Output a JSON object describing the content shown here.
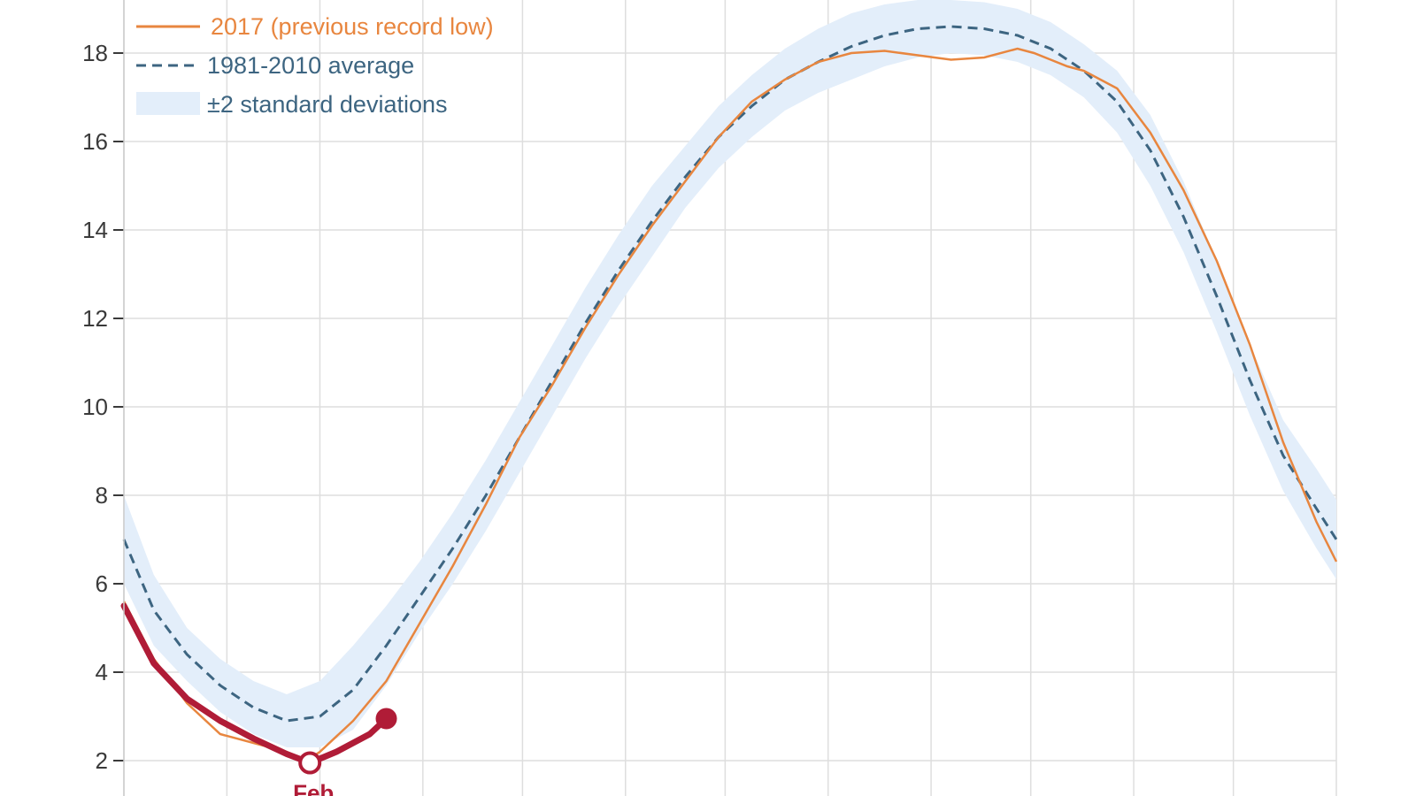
{
  "chart_data": {
    "type": "line",
    "ylim": [
      1.2,
      19.2
    ],
    "xlim": [
      1,
      366
    ],
    "yticks": [
      2,
      4,
      6,
      8,
      10,
      12,
      14,
      16,
      18
    ],
    "ytick_labels": [
      "2",
      "4",
      "6",
      "8",
      "10",
      "12",
      "14",
      "16",
      "18"
    ],
    "x_gridlines": [
      1,
      32,
      60,
      91,
      121,
      152,
      182,
      213,
      244,
      274,
      305,
      335,
      366
    ],
    "grid": true,
    "legend_placement": "top-left",
    "series": [
      {
        "name": "2017 (previous record low)",
        "style": "solid",
        "color": "#e8863f",
        "x": [
          1,
          10,
          20,
          30,
          40,
          50,
          56,
          60,
          70,
          80,
          90,
          100,
          110,
          120,
          130,
          140,
          150,
          160,
          170,
          180,
          190,
          200,
          210,
          220,
          230,
          240,
          250,
          260,
          270,
          275,
          280,
          285,
          290,
          300,
          310,
          320,
          330,
          340,
          350,
          360,
          366
        ],
        "y": [
          5.6,
          4.3,
          3.3,
          2.6,
          2.4,
          2.2,
          2.0,
          2.2,
          2.9,
          3.8,
          5.1,
          6.4,
          7.8,
          9.3,
          10.5,
          11.8,
          13.0,
          14.1,
          15.1,
          16.1,
          16.9,
          17.4,
          17.8,
          18.0,
          18.05,
          17.95,
          17.85,
          17.9,
          18.1,
          18.0,
          17.85,
          17.7,
          17.6,
          17.2,
          16.2,
          14.9,
          13.3,
          11.4,
          9.2,
          7.4,
          6.5
        ]
      },
      {
        "name": "1981-2010 average",
        "style": "dashed",
        "color": "#3d6581",
        "x": [
          1,
          10,
          20,
          30,
          40,
          50,
          60,
          70,
          80,
          90,
          100,
          110,
          120,
          130,
          140,
          150,
          160,
          170,
          180,
          190,
          200,
          210,
          220,
          230,
          240,
          250,
          260,
          270,
          280,
          290,
          300,
          310,
          320,
          330,
          340,
          350,
          360,
          366
        ],
        "y": [
          7.0,
          5.4,
          4.4,
          3.7,
          3.2,
          2.9,
          3.0,
          3.6,
          4.6,
          5.7,
          6.8,
          8.0,
          9.3,
          10.6,
          11.9,
          13.1,
          14.2,
          15.2,
          16.1,
          16.8,
          17.4,
          17.8,
          18.15,
          18.4,
          18.55,
          18.6,
          18.55,
          18.4,
          18.1,
          17.6,
          16.9,
          15.8,
          14.3,
          12.5,
          10.6,
          8.9,
          7.7,
          7.0
        ]
      },
      {
        "name": "±2 standard deviations",
        "style": "band",
        "color": "#e3eefa",
        "x": [
          1,
          10,
          20,
          30,
          40,
          50,
          60,
          70,
          80,
          90,
          100,
          110,
          120,
          130,
          140,
          150,
          160,
          170,
          180,
          190,
          200,
          210,
          220,
          230,
          240,
          250,
          260,
          270,
          280,
          290,
          300,
          310,
          320,
          330,
          340,
          350,
          360,
          366
        ],
        "upper": [
          8.0,
          6.2,
          5.0,
          4.3,
          3.8,
          3.5,
          3.8,
          4.6,
          5.5,
          6.5,
          7.6,
          8.8,
          10.1,
          11.4,
          12.7,
          13.9,
          15.0,
          15.9,
          16.8,
          17.5,
          18.1,
          18.55,
          18.9,
          19.1,
          19.2,
          19.2,
          19.15,
          19.0,
          18.7,
          18.2,
          17.6,
          16.6,
          15.1,
          13.3,
          11.4,
          9.7,
          8.6,
          7.9
        ]
      },
      {
        "name": "",
        "style": "current",
        "color": "#b01c37",
        "x": [
          1,
          10,
          20,
          30,
          40,
          50,
          57,
          65,
          75,
          80
        ],
        "y": [
          5.5,
          4.2,
          3.4,
          2.9,
          2.5,
          2.15,
          1.95,
          2.2,
          2.6,
          2.95
        ]
      }
    ],
    "lower_band": [
      6.0,
      4.6,
      3.8,
      3.1,
      2.6,
      2.3,
      2.3,
      2.7,
      3.7,
      4.9,
      6.0,
      7.2,
      8.5,
      9.8,
      11.1,
      12.3,
      13.4,
      14.5,
      15.4,
      16.1,
      16.7,
      17.1,
      17.4,
      17.7,
      17.9,
      18.0,
      17.95,
      17.8,
      17.5,
      17.0,
      16.2,
      15.0,
      13.5,
      11.7,
      9.8,
      8.1,
      6.8,
      6.1
    ],
    "annotations": [
      {
        "text": "Feb",
        "x": 57,
        "y": 1.95,
        "marker": "open-circle"
      },
      {
        "text": "",
        "x": 80,
        "y": 2.95,
        "marker": "filled-circle"
      }
    ]
  }
}
